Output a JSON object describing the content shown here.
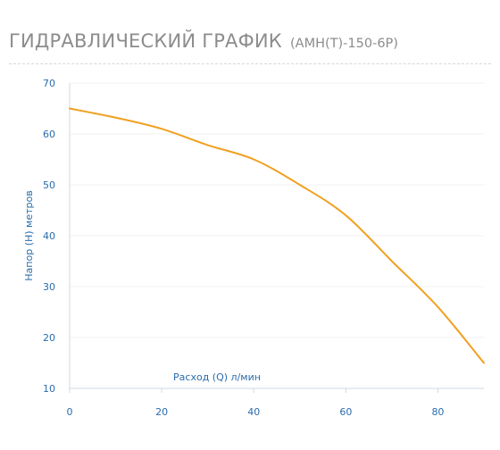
{
  "header": {
    "title": "ГИДРАВЛИЧЕСКИЙ ГРАФИК",
    "model": "(АМН(Т)-150-6Р)"
  },
  "chart_data": {
    "type": "line",
    "xlabel": "Расход (Q) л/мин",
    "ylabel": "Напор (Н) метров",
    "xlim": [
      0,
      90
    ],
    "ylim": [
      10,
      70
    ],
    "xticks": [
      0,
      20,
      40,
      60,
      80
    ],
    "yticks": [
      10,
      20,
      30,
      40,
      50,
      60,
      70
    ],
    "series": [
      {
        "x": [
          0,
          10,
          20,
          30,
          40,
          50,
          60,
          70,
          80,
          90
        ],
        "values": [
          65,
          63.2,
          61,
          57.8,
          55,
          50,
          44,
          35,
          26,
          15
        ]
      }
    ],
    "line_color": "#f0a020",
    "axis_color": "#2a6cab"
  }
}
